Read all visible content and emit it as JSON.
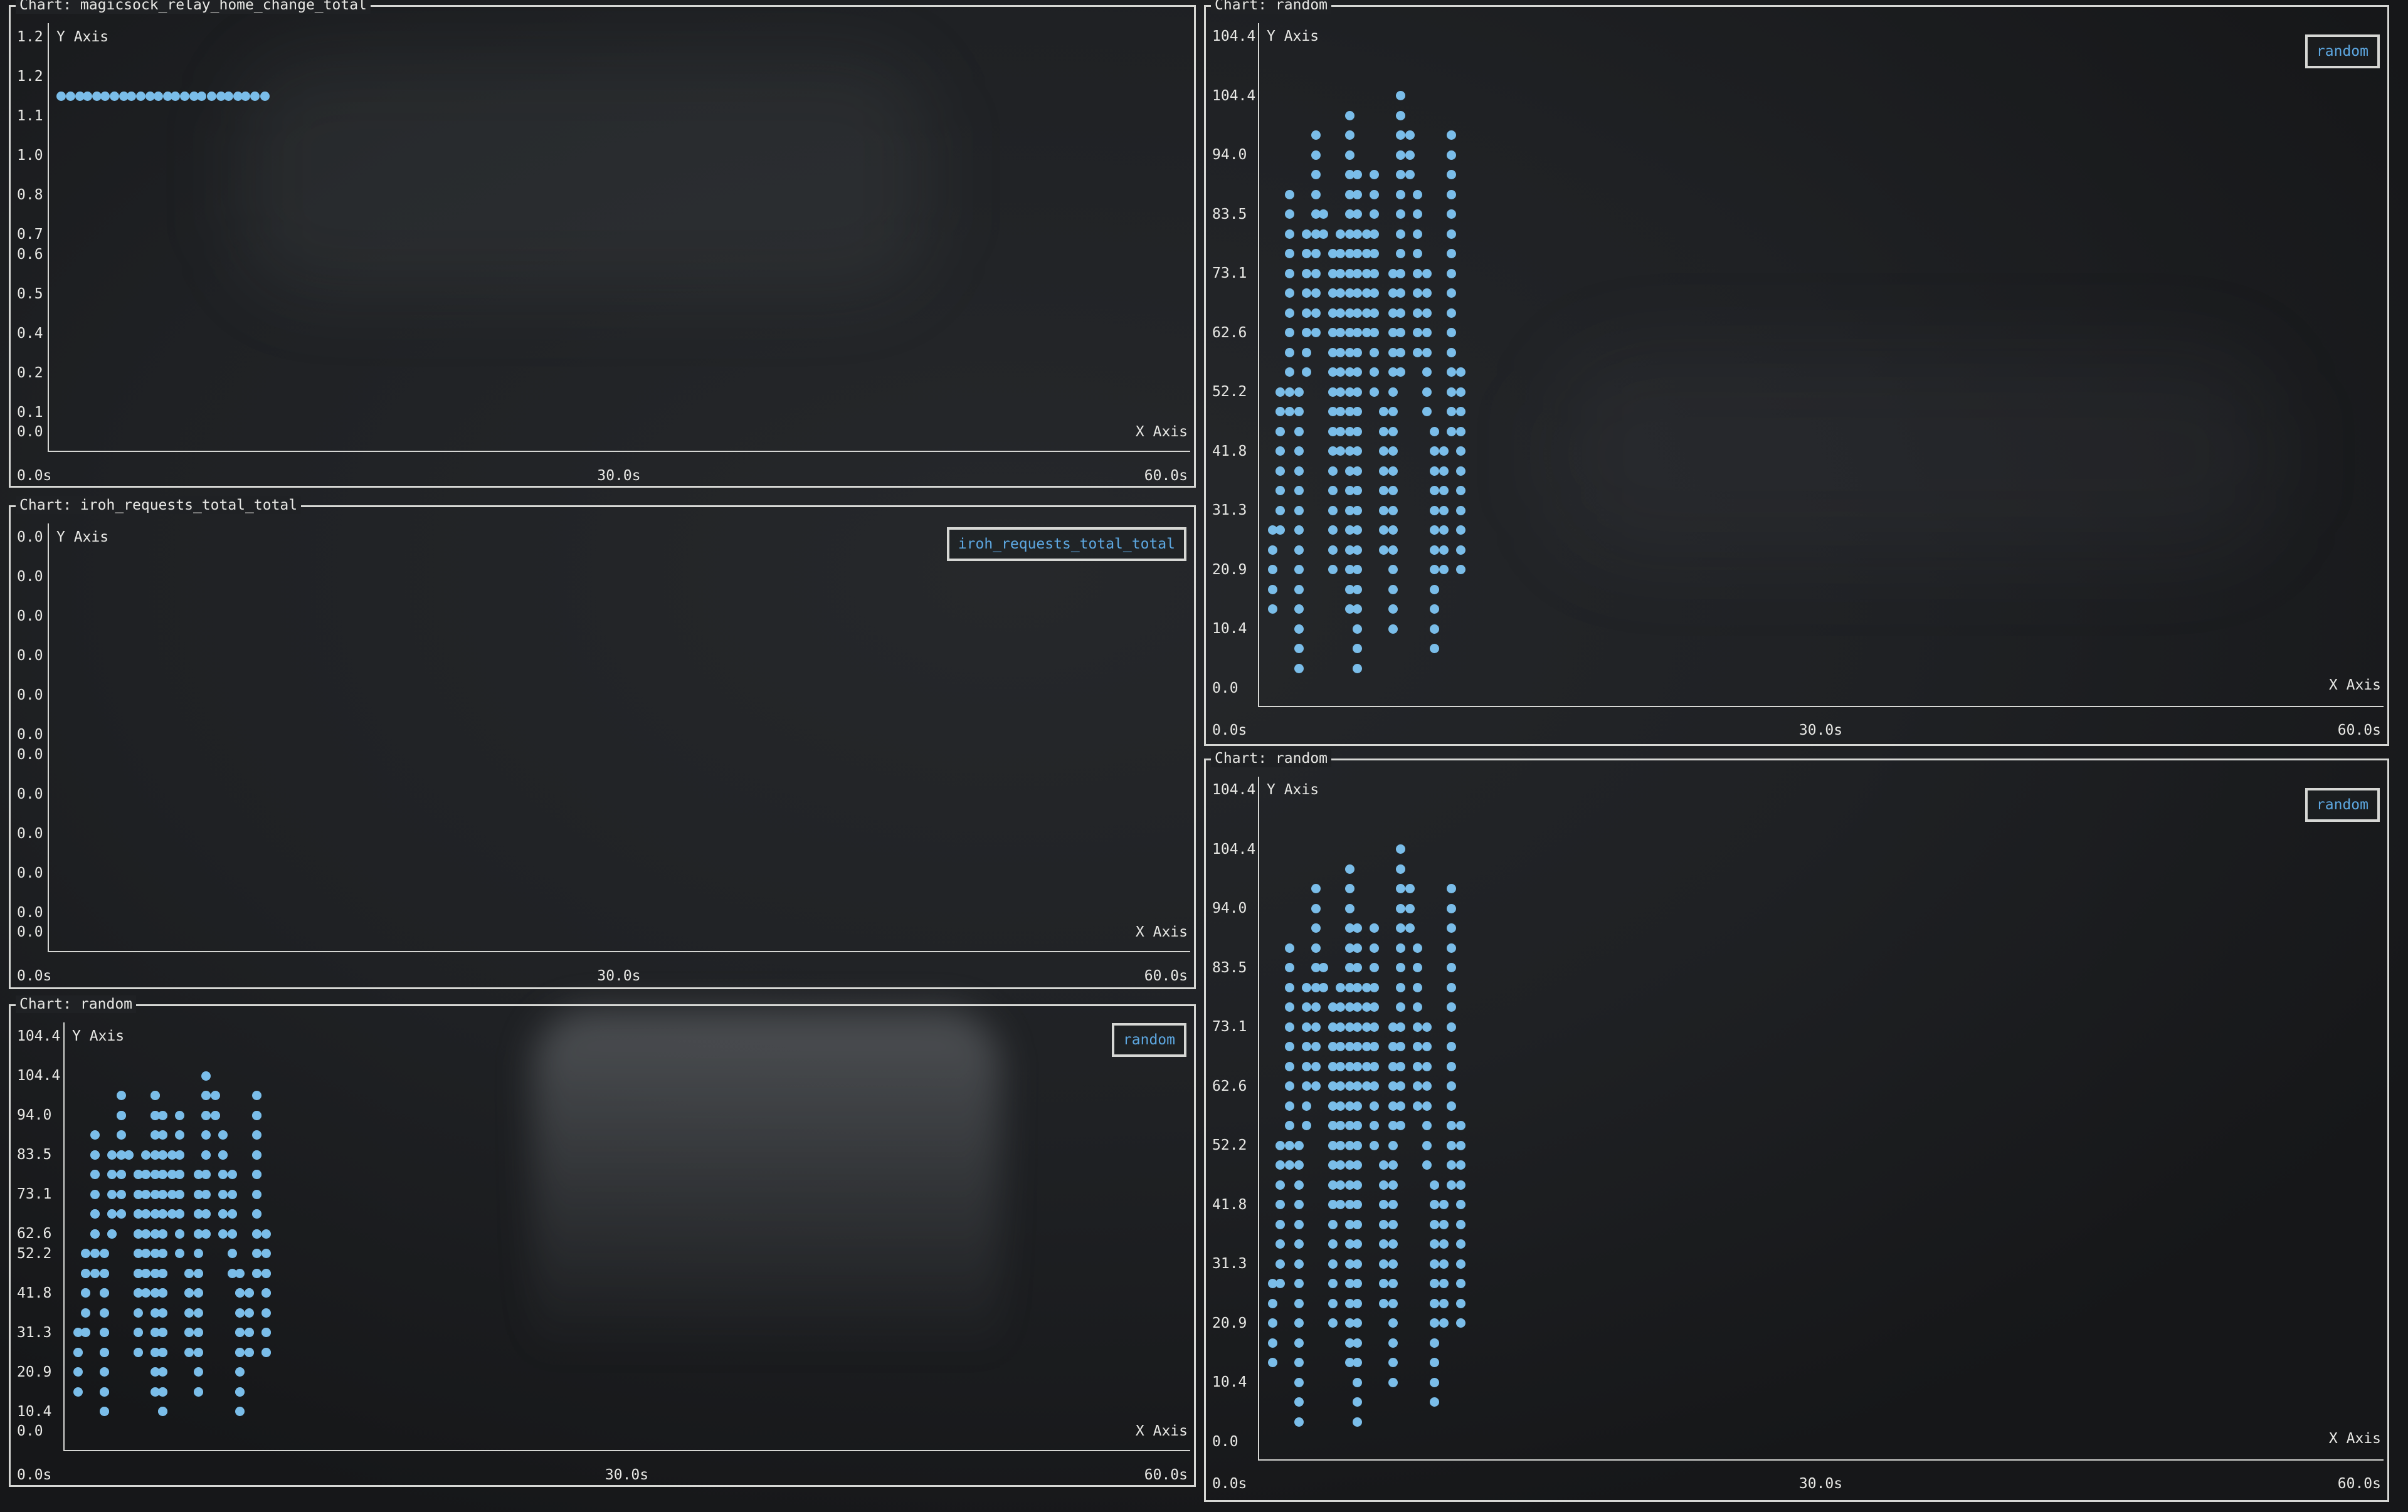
{
  "palette": {
    "background": "#1e2023",
    "text": "#e8e8e5",
    "border": "#d6d7d4",
    "series_blue": "#7abde9",
    "legend_text": "#5da8e2"
  },
  "axis_titles": {
    "x": "X Axis",
    "y": "Y Axis"
  },
  "x_tick_labels": [
    "0.0s",
    "30.0s",
    "60.0s"
  ],
  "charts": [
    {
      "title": "Chart: magicsock_relay_home_change_total",
      "legend": null,
      "y_tick_labels": [
        "1.2",
        "1.2",
        "1.1",
        "1.0",
        "0.8",
        "0.7",
        "0.6",
        "0.5",
        "0.4",
        "0.2",
        "0.1",
        "0.0"
      ]
    },
    {
      "title": "Chart: iroh_requests_total_total",
      "legend": "iroh_requests_total_total",
      "y_tick_labels": [
        "0.0",
        "0.0",
        "0.0",
        "0.0",
        "0.0",
        "0.0",
        "0.0",
        "0.0",
        "0.0",
        "0.0",
        "0.0",
        "0.0"
      ]
    },
    {
      "title": "Chart: random",
      "legend": "random",
      "y_tick_labels": [
        "104.4",
        "104.4",
        "94.0",
        "83.5",
        "73.1",
        "62.6",
        "52.2",
        "41.8",
        "31.3",
        "20.9",
        "10.4",
        "0.0"
      ]
    },
    {
      "title": "Chart: random",
      "legend": "random",
      "y_tick_labels": [
        "104.4",
        "104.4",
        "94.0",
        "83.5",
        "73.1",
        "62.6",
        "52.2",
        "41.8",
        "31.3",
        "20.9",
        "10.4",
        "0.0"
      ]
    },
    {
      "title": "Chart: random",
      "legend": "random",
      "y_tick_labels": [
        "104.4",
        "104.4",
        "94.0",
        "83.5",
        "73.1",
        "62.6",
        "52.2",
        "41.8",
        "31.3",
        "20.9",
        "10.4",
        "0.0"
      ]
    }
  ],
  "chart_data": [
    {
      "type": "scatter",
      "series": "magicsock_relay_home_change_total",
      "x_range_s": [
        0,
        60
      ],
      "x_ticks_s": [
        0,
        30,
        60
      ],
      "y_range": [
        0,
        1.2
      ],
      "points_by_value": [
        {
          "y": 1.15,
          "t": [
            0.7,
            1.2,
            1.7,
            2.1,
            2.6,
            3.0,
            3.5,
            4.0,
            4.4,
            4.9,
            5.4,
            5.8,
            6.3,
            6.7,
            7.2,
            7.7,
            8.1,
            8.6,
            9.1,
            9.5,
            10.0,
            10.4,
            10.9,
            11.4
          ]
        }
      ]
    },
    {
      "type": "scatter",
      "series": "iroh_requests_total_total",
      "x_range_s": [
        0,
        60
      ],
      "x_ticks_s": [
        0,
        30,
        60
      ],
      "y_range": [
        0,
        0
      ],
      "points_by_value": []
    },
    {
      "type": "scatter",
      "series": "random",
      "x_range_s": [
        0,
        60
      ],
      "x_ticks_s": [
        0,
        30,
        60
      ],
      "y_range": [
        0,
        104.4
      ],
      "points_by_value": [
        {
          "y": 104.4,
          "t": [
            7.6
          ]
        },
        {
          "y": 100.9,
          "t": [
            4.9,
            7.6
          ]
        },
        {
          "y": 97.4,
          "t": [
            3.1,
            4.9,
            7.6,
            8.1,
            10.3
          ]
        },
        {
          "y": 94.0,
          "t": [
            3.1,
            4.9,
            7.6,
            8.1,
            10.3
          ]
        },
        {
          "y": 90.5,
          "t": [
            3.1,
            4.9,
            5.3,
            6.2,
            7.6,
            8.1,
            10.3
          ]
        },
        {
          "y": 87.0,
          "t": [
            1.7,
            3.1,
            4.9,
            5.3,
            6.2,
            7.6,
            8.5,
            10.3
          ]
        },
        {
          "y": 83.5,
          "t": [
            1.7,
            3.1,
            3.5,
            4.9,
            5.3,
            6.2,
            7.6,
            8.5,
            10.3
          ]
        },
        {
          "y": 80.1,
          "t": [
            1.7,
            2.6,
            3.1,
            3.5,
            4.4,
            4.9,
            5.3,
            5.8,
            6.2,
            7.6,
            8.5,
            10.3
          ]
        },
        {
          "y": 76.6,
          "t": [
            1.7,
            2.6,
            3.1,
            4.0,
            4.4,
            4.9,
            5.3,
            5.8,
            6.2,
            7.6,
            8.5,
            10.3
          ]
        },
        {
          "y": 73.1,
          "t": [
            1.7,
            2.6,
            3.1,
            4.0,
            4.4,
            4.9,
            5.3,
            5.8,
            6.2,
            7.2,
            7.6,
            8.5,
            9.0,
            10.3
          ]
        },
        {
          "y": 69.6,
          "t": [
            1.7,
            2.6,
            3.1,
            4.0,
            4.4,
            4.9,
            5.3,
            5.8,
            6.2,
            7.2,
            7.6,
            8.5,
            9.0,
            10.3
          ]
        },
        {
          "y": 66.2,
          "t": [
            1.7,
            2.6,
            3.1,
            4.0,
            4.4,
            4.9,
            5.3,
            5.8,
            6.2,
            7.2,
            7.6,
            8.5,
            9.0,
            10.3
          ]
        },
        {
          "y": 62.6,
          "t": [
            1.7,
            2.6,
            3.1,
            4.0,
            4.4,
            4.9,
            5.3,
            5.8,
            6.2,
            7.2,
            7.6,
            8.5,
            9.0,
            10.3
          ]
        },
        {
          "y": 59.2,
          "t": [
            1.7,
            2.6,
            4.0,
            4.4,
            4.9,
            5.3,
            6.2,
            7.2,
            7.6,
            8.5,
            9.0,
            10.3
          ]
        },
        {
          "y": 55.7,
          "t": [
            1.7,
            2.6,
            4.0,
            4.4,
            4.9,
            5.3,
            6.2,
            7.2,
            7.6,
            9.0,
            10.3,
            10.8
          ]
        },
        {
          "y": 52.2,
          "t": [
            1.2,
            1.7,
            2.2,
            4.0,
            4.4,
            4.9,
            5.3,
            6.2,
            7.2,
            9.0,
            10.3,
            10.8
          ]
        },
        {
          "y": 48.7,
          "t": [
            1.2,
            1.7,
            2.2,
            4.0,
            4.4,
            4.9,
            5.3,
            6.7,
            7.2,
            9.0,
            10.3,
            10.8
          ]
        },
        {
          "y": 45.3,
          "t": [
            1.2,
            2.2,
            4.0,
            4.4,
            4.9,
            5.3,
            6.7,
            7.2,
            9.4,
            10.3,
            10.8
          ]
        },
        {
          "y": 41.8,
          "t": [
            1.2,
            2.2,
            4.0,
            4.4,
            4.9,
            5.3,
            6.7,
            7.2,
            9.4,
            9.9,
            10.8
          ]
        },
        {
          "y": 38.3,
          "t": [
            1.2,
            2.2,
            4.0,
            4.9,
            5.3,
            6.7,
            7.2,
            9.4,
            9.9,
            10.8
          ]
        },
        {
          "y": 34.8,
          "t": [
            1.2,
            2.2,
            4.0,
            4.9,
            5.3,
            6.7,
            7.2,
            9.4,
            9.9,
            10.8
          ]
        },
        {
          "y": 31.3,
          "t": [
            1.2,
            2.2,
            4.0,
            4.9,
            5.3,
            6.7,
            7.2,
            9.4,
            9.9,
            10.8
          ]
        },
        {
          "y": 27.9,
          "t": [
            0.8,
            1.2,
            2.2,
            4.0,
            4.9,
            5.3,
            6.7,
            7.2,
            9.4,
            9.9,
            10.8
          ]
        },
        {
          "y": 24.4,
          "t": [
            0.8,
            2.2,
            4.0,
            4.9,
            5.3,
            6.7,
            7.2,
            9.4,
            9.9,
            10.8
          ]
        },
        {
          "y": 20.9,
          "t": [
            0.8,
            2.2,
            4.0,
            4.9,
            5.3,
            7.2,
            9.4,
            9.9,
            10.8
          ]
        },
        {
          "y": 17.4,
          "t": [
            0.8,
            2.2,
            4.9,
            5.3,
            7.2,
            9.4
          ]
        },
        {
          "y": 13.9,
          "t": [
            0.8,
            2.2,
            4.9,
            5.3,
            7.2,
            9.4
          ]
        },
        {
          "y": 10.4,
          "t": [
            2.2,
            5.3,
            7.2,
            9.4
          ]
        },
        {
          "y": 7.0,
          "t": [
            2.2,
            5.3,
            9.4
          ]
        },
        {
          "y": 3.5,
          "t": [
            2.2,
            5.3
          ]
        }
      ]
    },
    {
      "type": "scatter",
      "series": "random",
      "x_range_s": [
        0,
        60
      ],
      "x_ticks_s": [
        0,
        30,
        60
      ],
      "y_range": [
        0,
        104.4
      ],
      "points_ref": 2
    },
    {
      "type": "scatter",
      "series": "random",
      "x_range_s": [
        0,
        60
      ],
      "x_ticks_s": [
        0,
        30,
        60
      ],
      "y_range": [
        0,
        104.4
      ],
      "points_ref": 2
    }
  ]
}
